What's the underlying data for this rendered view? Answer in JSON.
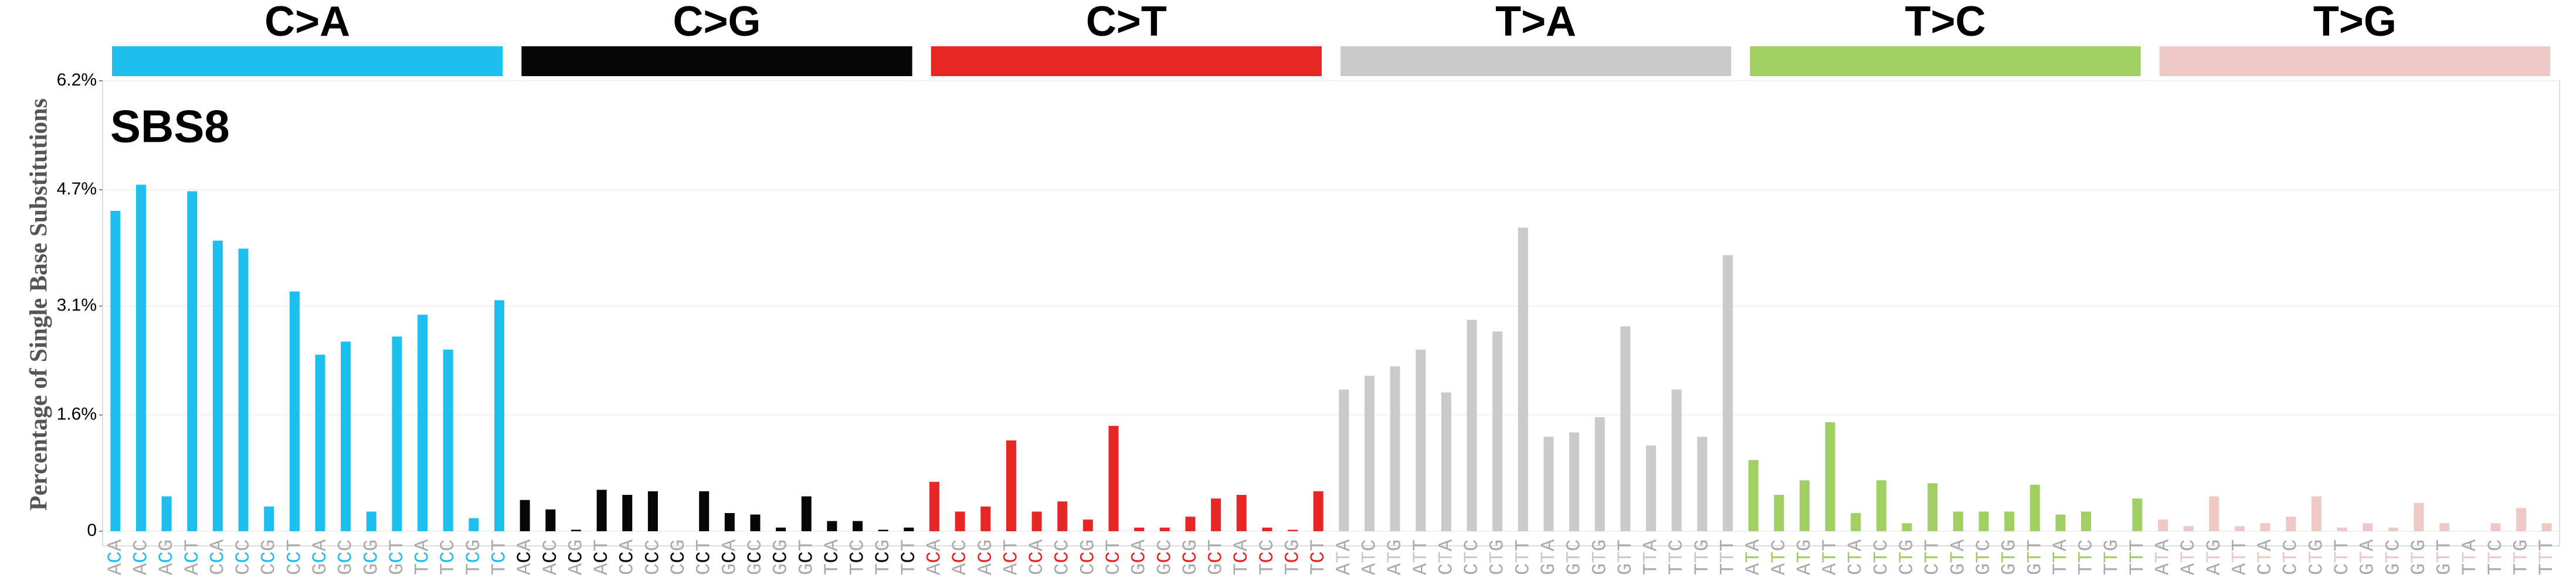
{
  "chart_data": {
    "type": "bar",
    "title": "SBS8",
    "y_label": "Percentage of Single Base Substitutions",
    "ylim": [
      0,
      6.2
    ],
    "yticks": [
      0,
      {
        "value": 1.6,
        "label": "1.6%"
      },
      {
        "value": 3.1,
        "label": "3.1%"
      },
      {
        "value": 4.7,
        "label": "4.7%"
      },
      {
        "value": 6.2,
        "label": "6.2%"
      }
    ],
    "grid": true,
    "series": [
      {
        "name": "C>A",
        "color": "#1ebff0",
        "categories": [
          "ACA",
          "ACC",
          "ACG",
          "ACT",
          "CCA",
          "CCC",
          "CCG",
          "CCT",
          "GCA",
          "GCC",
          "GCG",
          "GCT",
          "TCA",
          "TCC",
          "TCG",
          "TCT"
        ],
        "values": [
          4.41,
          4.77,
          0.48,
          4.68,
          4.0,
          3.89,
          0.34,
          3.3,
          2.43,
          2.61,
          0.27,
          2.68,
          2.98,
          2.5,
          0.18,
          3.18
        ]
      },
      {
        "name": "C>G",
        "color": "#050708",
        "categories": [
          "ACA",
          "ACC",
          "ACG",
          "ACT",
          "CCA",
          "CCC",
          "CCG",
          "CCT",
          "GCA",
          "GCC",
          "GCG",
          "GCT",
          "TCA",
          "TCC",
          "TCG",
          "TCT"
        ],
        "values": [
          0.43,
          0.3,
          0.02,
          0.57,
          0.5,
          0.55,
          0.0,
          0.55,
          0.25,
          0.23,
          0.05,
          0.48,
          0.14,
          0.14,
          0.02,
          0.05
        ]
      },
      {
        "name": "C>T",
        "color": "#e62725",
        "categories": [
          "ACA",
          "ACC",
          "ACG",
          "ACT",
          "CCA",
          "CCC",
          "CCG",
          "CCT",
          "GCA",
          "GCC",
          "GCG",
          "GCT",
          "TCA",
          "TCC",
          "TCG",
          "TCT"
        ],
        "values": [
          0.68,
          0.27,
          0.34,
          1.25,
          0.27,
          0.41,
          0.16,
          1.45,
          0.05,
          0.05,
          0.2,
          0.45,
          0.5,
          0.05,
          0.02,
          0.55
        ]
      },
      {
        "name": "T>A",
        "color": "#cbcacb",
        "categories": [
          "ATA",
          "ATC",
          "ATG",
          "ATT",
          "CTA",
          "CTC",
          "CTG",
          "CTT",
          "GTA",
          "GTC",
          "GTG",
          "GTT",
          "TTA",
          "TTC",
          "TTG",
          "TTT"
        ],
        "values": [
          1.95,
          2.14,
          2.27,
          2.5,
          1.91,
          2.91,
          2.75,
          4.18,
          1.3,
          1.36,
          1.57,
          2.82,
          1.18,
          1.95,
          1.3,
          3.8
        ]
      },
      {
        "name": "T>C",
        "color": "#a1cf64",
        "categories": [
          "ATA",
          "ATC",
          "ATG",
          "ATT",
          "CTA",
          "CTC",
          "CTG",
          "CTT",
          "GTA",
          "GTC",
          "GTG",
          "GTT",
          "TTA",
          "TTC",
          "TTG",
          "TTT"
        ],
        "values": [
          0.98,
          0.5,
          0.7,
          1.5,
          0.25,
          0.7,
          0.11,
          0.66,
          0.27,
          0.27,
          0.27,
          0.64,
          0.23,
          0.27,
          0.0,
          0.45
        ]
      },
      {
        "name": "T>G",
        "color": "#edc8c5",
        "categories": [
          "ATA",
          "ATC",
          "ATG",
          "ATT",
          "CTA",
          "CTC",
          "CTG",
          "CTT",
          "GTA",
          "GTC",
          "GTG",
          "GTT",
          "TTA",
          "TTC",
          "TTG",
          "TTT"
        ],
        "values": [
          0.16,
          0.07,
          0.48,
          0.07,
          0.11,
          0.2,
          0.48,
          0.05,
          0.11,
          0.05,
          0.39,
          0.11,
          0.0,
          0.11,
          0.32,
          0.11
        ]
      }
    ]
  }
}
